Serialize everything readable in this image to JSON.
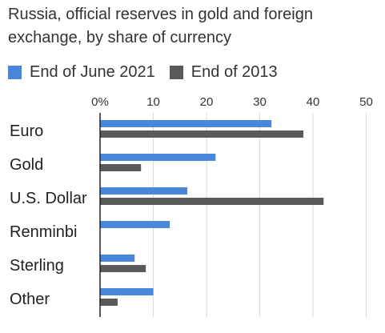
{
  "title": "Russia, official reserves in gold and foreign exchange, by share of currency",
  "legend": [
    {
      "label": "End of June 2021",
      "color": "#4a86d9"
    },
    {
      "label": "End of 2013",
      "color": "#5a5a5a"
    }
  ],
  "chart_data": {
    "type": "bar",
    "orientation": "horizontal",
    "title": "Russia, official reserves in gold and foreign exchange, by share of currency",
    "categories": [
      "Euro",
      "Gold",
      "U.S. Dollar",
      "Renminbi",
      "Sterling",
      "Other"
    ],
    "series": [
      {
        "name": "End of June 2021",
        "color": "#4a86d9",
        "values": [
          32.2,
          21.7,
          16.4,
          13.1,
          6.5,
          10.0
        ]
      },
      {
        "name": "End of 2013",
        "color": "#5a5a5a",
        "values": [
          38.2,
          7.7,
          42.0,
          0,
          8.6,
          3.3
        ]
      }
    ],
    "xlim": [
      0,
      50
    ],
    "xticks": [
      "0%",
      "10",
      "20",
      "30",
      "40",
      "50"
    ],
    "grid": true,
    "legend_position": "top-left"
  }
}
